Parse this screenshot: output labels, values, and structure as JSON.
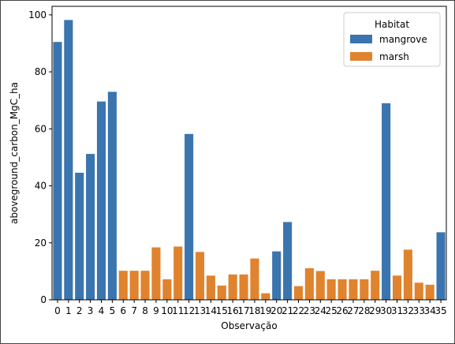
{
  "chart_data": {
    "type": "bar",
    "xlabel": "Observação",
    "ylabel": "aboveground_carbon_MgC_ha",
    "ylim": [
      0,
      103
    ],
    "yticks": [
      0,
      20,
      40,
      60,
      80,
      100
    ],
    "categories": [
      "0",
      "1",
      "2",
      "3",
      "4",
      "5",
      "6",
      "7",
      "8",
      "9",
      "10",
      "11",
      "12",
      "13",
      "14",
      "15",
      "16",
      "17",
      "18",
      "19",
      "20",
      "21",
      "22",
      "23",
      "24",
      "25",
      "26",
      "27",
      "28",
      "29",
      "30",
      "31",
      "32",
      "33",
      "34",
      "35"
    ],
    "values": [
      90.5,
      98.2,
      44.6,
      51.2,
      69.6,
      73.0,
      10.2,
      10.2,
      10.2,
      18.4,
      7.2,
      18.7,
      58.2,
      16.8,
      8.5,
      5.0,
      8.9,
      8.9,
      14.5,
      2.3,
      17.0,
      27.3,
      4.8,
      11.1,
      10.1,
      7.2,
      7.2,
      7.2,
      7.2,
      10.2,
      69.0,
      8.5,
      17.6,
      6.0,
      5.3,
      23.7
    ],
    "habitat": [
      "mangrove",
      "mangrove",
      "mangrove",
      "mangrove",
      "mangrove",
      "mangrove",
      "marsh",
      "marsh",
      "marsh",
      "marsh",
      "marsh",
      "marsh",
      "mangrove",
      "marsh",
      "marsh",
      "marsh",
      "marsh",
      "marsh",
      "marsh",
      "marsh",
      "mangrove",
      "mangrove",
      "marsh",
      "marsh",
      "marsh",
      "marsh",
      "marsh",
      "marsh",
      "marsh",
      "marsh",
      "mangrove",
      "marsh",
      "marsh",
      "marsh",
      "marsh",
      "mangrove"
    ],
    "grid": false,
    "legend": {
      "title": "Habitat",
      "position": "top-right",
      "entries": [
        {
          "name": "mangrove",
          "color": "#3a75af"
        },
        {
          "name": "marsh",
          "color": "#e0832e"
        }
      ]
    }
  }
}
